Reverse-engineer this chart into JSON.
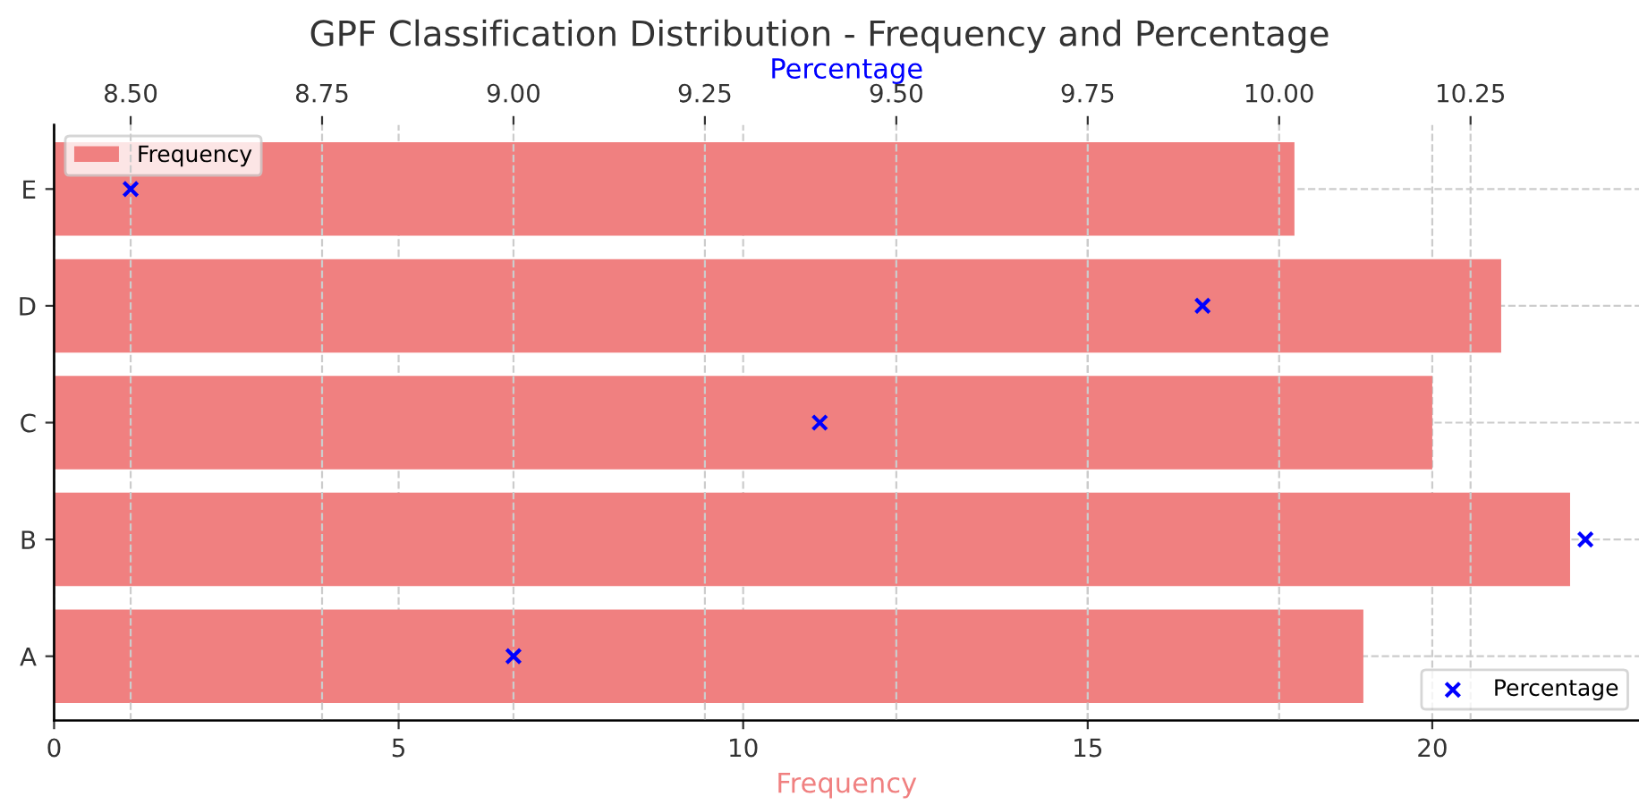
{
  "chart_data": {
    "type": "bar",
    "orientation": "horizontal",
    "title": "GPF Classification Distribution - Frequency and Percentage",
    "xlabel": "Frequency",
    "x2label": "Percentage",
    "categories": [
      "E",
      "D",
      "C",
      "B",
      "A"
    ],
    "series": [
      {
        "name": "Frequency",
        "color": "#f08080",
        "values": [
          18,
          21,
          20,
          22,
          19
        ]
      },
      {
        "name": "Percentage",
        "type": "scatter",
        "axis": "x2",
        "color": "#0000ff",
        "marker": "cross",
        "values": [
          8.5,
          9.9,
          9.4,
          10.4,
          9.0
        ]
      }
    ],
    "xlim": [
      0,
      23.0
    ],
    "xticks": [
      0,
      5,
      10,
      15,
      20
    ],
    "x2lim": [
      8.4,
      10.47
    ],
    "x2ticks": [
      {
        "value": 8.5,
        "label": "8.50"
      },
      {
        "value": 8.75,
        "label": "8.75"
      },
      {
        "value": 9.0,
        "label": "9.00"
      },
      {
        "value": 9.25,
        "label": "9.25"
      },
      {
        "value": 9.5,
        "label": "9.50"
      },
      {
        "value": 9.75,
        "label": "9.75"
      },
      {
        "value": 10.0,
        "label": "10.00"
      },
      {
        "value": 10.25,
        "label": "10.25"
      }
    ],
    "grid": true,
    "legend": "top left"
  }
}
